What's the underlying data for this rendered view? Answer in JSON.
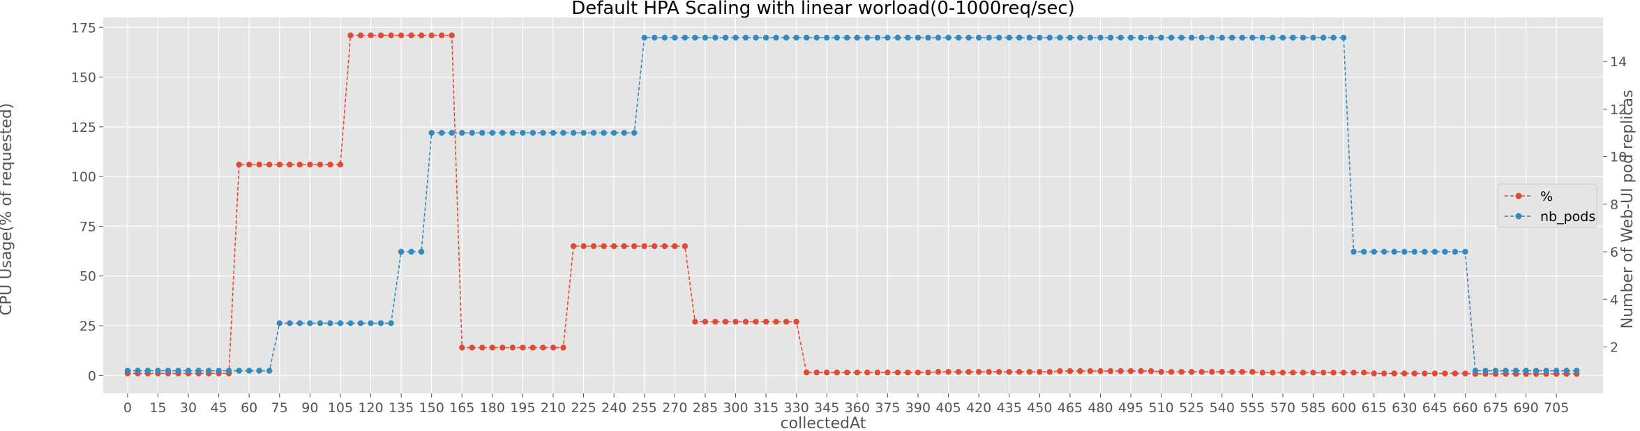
{
  "chart_data": {
    "type": "line",
    "title": "Default HPA Scaling with linear worload(0-1000req/sec)",
    "xlabel": "collectedAt",
    "ylabel_left": "CPU Usage(% of requested)",
    "ylabel_right": "Number of Web-UI pod replicas",
    "x_step": 5,
    "x_count": 144,
    "xticks": [
      0,
      15,
      30,
      45,
      60,
      75,
      90,
      105,
      120,
      135,
      150,
      165,
      180,
      195,
      210,
      225,
      240,
      255,
      270,
      285,
      300,
      315,
      330,
      345,
      360,
      375,
      390,
      405,
      420,
      435,
      450,
      465,
      480,
      495,
      510,
      525,
      540,
      555,
      570,
      585,
      600,
      615,
      630,
      645,
      660,
      675,
      690,
      705
    ],
    "xlim": [
      -12,
      728
    ],
    "ylim_left": [
      -9,
      180
    ],
    "yticks_left": [
      0,
      25,
      50,
      75,
      100,
      125,
      150,
      175
    ],
    "ylim_right": [
      0.05,
      15.85
    ],
    "yticks_right": [
      2,
      4,
      6,
      8,
      10,
      12,
      14
    ],
    "grid": true,
    "legend_position": "center-right",
    "series": [
      {
        "name": "%",
        "axis": "left",
        "color": "#E24A33",
        "linestyle": "dashed",
        "marker": "circle",
        "segments": [
          {
            "count": 11,
            "value": 1
          },
          {
            "count": 11,
            "value": 106
          },
          {
            "count": 11,
            "value": 171
          },
          {
            "count": 11,
            "value": 14
          },
          {
            "count": 12,
            "value": 65
          },
          {
            "count": 11,
            "value": 27
          },
          {
            "count": 13,
            "value": 1.5
          },
          {
            "count": 12,
            "value": 1.8
          },
          {
            "count": 10,
            "value": 2.2
          },
          {
            "count": 10,
            "value": 1.8
          },
          {
            "count": 11,
            "value": 1.4
          },
          {
            "count": 10,
            "value": 1.0
          },
          {
            "count": 11,
            "value": 0.8
          }
        ]
      },
      {
        "name": "nb_pods",
        "axis": "right",
        "color": "#348ABD",
        "linestyle": "dashed",
        "marker": "circle",
        "segments": [
          {
            "count": 15,
            "value": 1
          },
          {
            "count": 12,
            "value": 3
          },
          {
            "count": 3,
            "value": 6
          },
          {
            "count": 21,
            "value": 11
          },
          {
            "count": 70,
            "value": 15
          },
          {
            "count": 12,
            "value": 6
          },
          {
            "count": 11,
            "value": 1
          }
        ]
      }
    ]
  }
}
